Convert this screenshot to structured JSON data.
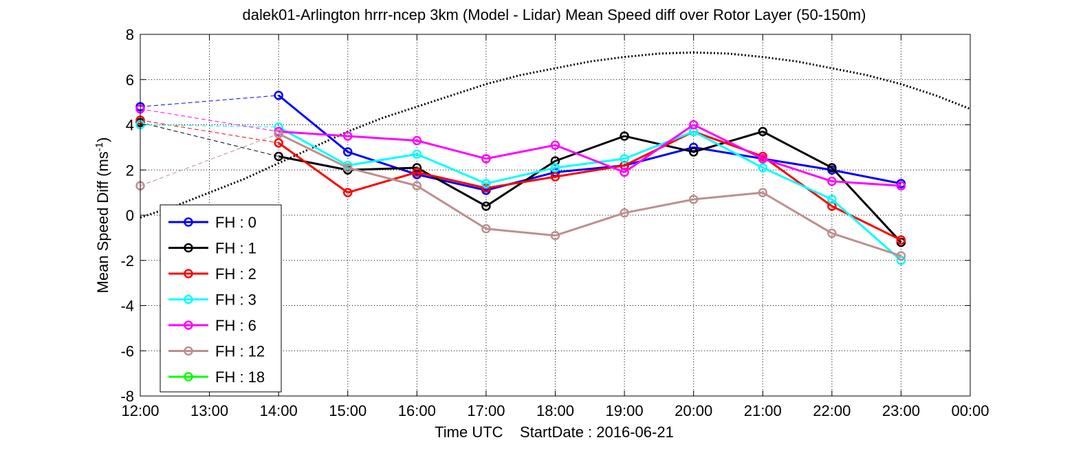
{
  "chart_data": {
    "type": "line",
    "title": "dalek01-Arlington hrrr-ncep 3km (Model - Lidar) Mean Speed diff over Rotor Layer (50-150m)",
    "xlabel": "Time UTC    StartDate : 2016-06-21",
    "ylabel_main": "Mean Speed Diff (ms",
    "ylabel_sup": "-1",
    "ylabel_end": ")",
    "ylim": [
      -8,
      8
    ],
    "xlim": [
      "12:00",
      "00:00"
    ],
    "x_tick_labels": [
      "12:00",
      "13:00",
      "14:00",
      "15:00",
      "16:00",
      "17:00",
      "18:00",
      "19:00",
      "20:00",
      "21:00",
      "22:00",
      "23:00",
      "00:00"
    ],
    "y_tick_labels": [
      "8",
      "6",
      "4",
      "2",
      "0",
      "-2",
      "-4",
      "-6",
      "-8"
    ],
    "grid": true,
    "legend_position": "lower-left",
    "series": [
      {
        "name": "FH : 0",
        "color": "#0000ff",
        "x": [
          "12:00",
          "14:00",
          "15:00",
          "16:00",
          "17:00",
          "18:00",
          "19:00",
          "20:00",
          "21:00",
          "22:00",
          "23:00"
        ],
        "y": [
          4.8,
          5.3,
          2.8,
          1.8,
          1.1,
          1.9,
          2.2,
          3.0,
          2.5,
          2.0,
          1.4
        ]
      },
      {
        "name": "FH : 1",
        "color": "#000000",
        "x": [
          "12:00",
          "14:00",
          "15:00",
          "16:00",
          "17:00",
          "18:00",
          "19:00",
          "20:00",
          "21:00",
          "22:00",
          "23:00"
        ],
        "y": [
          4.1,
          2.6,
          2.0,
          2.1,
          0.4,
          2.4,
          3.5,
          2.8,
          3.7,
          2.1,
          -1.2
        ]
      },
      {
        "name": "FH : 2",
        "color": "#ff0000",
        "x": [
          "12:00",
          "14:00",
          "15:00",
          "16:00",
          "17:00",
          "18:00",
          "19:00",
          "20:00",
          "21:00",
          "22:00",
          "23:00"
        ],
        "y": [
          4.2,
          3.2,
          1.0,
          1.9,
          1.2,
          1.7,
          2.2,
          3.7,
          2.6,
          0.4,
          -1.1
        ]
      },
      {
        "name": "FH : 3",
        "color": "#00ffff",
        "x": [
          "12:00",
          "14:00",
          "15:00",
          "16:00",
          "17:00",
          "18:00",
          "19:00",
          "20:00",
          "21:00",
          "22:00",
          "23:00"
        ],
        "y": [
          4.0,
          3.9,
          2.2,
          2.7,
          1.4,
          2.1,
          2.5,
          3.7,
          2.1,
          0.7,
          -2.0
        ]
      },
      {
        "name": "FH : 6",
        "color": "#ff00ff",
        "x": [
          "12:00",
          "14:00",
          "15:00",
          "16:00",
          "17:00",
          "18:00",
          "19:00",
          "20:00",
          "21:00",
          "22:00",
          "23:00"
        ],
        "y": [
          4.7,
          3.7,
          3.5,
          3.3,
          2.5,
          3.1,
          1.9,
          4.0,
          2.5,
          1.5,
          1.3
        ]
      },
      {
        "name": "FH : 12",
        "color": "#bc8f8f",
        "x": [
          "12:00",
          "14:00",
          "15:00",
          "16:00",
          "17:00",
          "18:00",
          "19:00",
          "20:00",
          "21:00",
          "22:00",
          "23:00"
        ],
        "y": [
          1.3,
          3.6,
          2.1,
          1.3,
          -0.6,
          -0.9,
          0.1,
          0.7,
          1.0,
          -0.8,
          -1.8
        ]
      },
      {
        "name": "FH : 18",
        "color": "#00ff00",
        "x": [],
        "y": []
      }
    ],
    "reference_curve": {
      "style": "dotted",
      "color": "#000000",
      "x": [
        "12:00",
        "12:30",
        "13:00",
        "13:30",
        "14:00",
        "14:30",
        "15:00",
        "15:30",
        "16:00",
        "16:30",
        "17:00",
        "17:30",
        "18:00",
        "18:30",
        "19:00",
        "19:30",
        "20:00",
        "20:30",
        "21:00",
        "21:30",
        "22:00",
        "22:30",
        "23:00",
        "23:30",
        "00:00"
      ],
      "y": [
        -0.1,
        0.4,
        1.0,
        1.6,
        2.3,
        3.0,
        3.7,
        4.3,
        4.8,
        5.3,
        5.8,
        6.2,
        6.5,
        6.8,
        7.0,
        7.15,
        7.2,
        7.15,
        7.0,
        6.8,
        6.5,
        6.2,
        5.8,
        5.3,
        4.7
      ]
    }
  }
}
